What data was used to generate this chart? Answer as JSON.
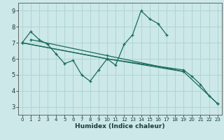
{
  "xlabel": "Humidex (Indice chaleur)",
  "bg_color": "#cce8e8",
  "grid_color": "#b0d4d4",
  "line_color": "#1a6b5a",
  "xlim": [
    -0.5,
    23.5
  ],
  "ylim": [
    2.5,
    9.5
  ],
  "xticks": [
    0,
    1,
    2,
    3,
    4,
    5,
    6,
    7,
    8,
    9,
    10,
    11,
    12,
    13,
    14,
    15,
    16,
    17,
    18,
    19,
    20,
    21,
    22,
    23
  ],
  "yticks": [
    3,
    4,
    5,
    6,
    7,
    8,
    9
  ],
  "series": [
    {
      "x": [
        0,
        1,
        2,
        3,
        4,
        5,
        6,
        7,
        8,
        9,
        10,
        11,
        12,
        13,
        14,
        15,
        16,
        17
      ],
      "y": [
        7.0,
        7.7,
        7.2,
        6.9,
        6.3,
        5.7,
        5.9,
        5.0,
        4.6,
        5.3,
        6.0,
        5.6,
        6.9,
        7.5,
        9.0,
        8.5,
        8.2,
        7.5
      ]
    },
    {
      "comment": "straight line 1: from (0,7) to (23, 3.2)",
      "x": [
        0,
        10,
        19,
        23
      ],
      "y": [
        7.0,
        6.0,
        5.2,
        3.2
      ]
    },
    {
      "x": [
        0,
        10,
        19,
        20,
        21,
        22,
        23
      ],
      "y": [
        7.0,
        6.0,
        5.3,
        4.9,
        4.4,
        3.7,
        3.2
      ]
    },
    {
      "x": [
        1,
        10,
        19
      ],
      "y": [
        7.2,
        6.2,
        5.2
      ]
    }
  ]
}
